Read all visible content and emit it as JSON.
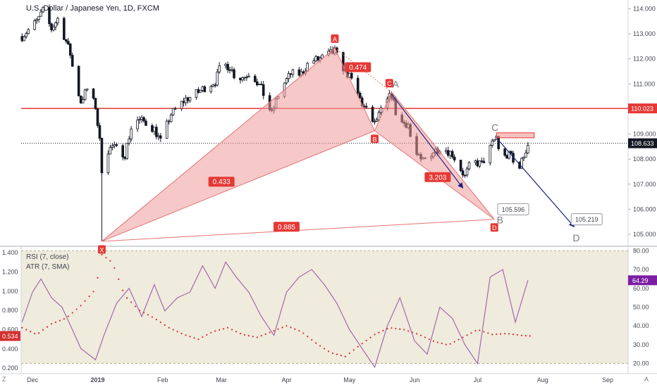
{
  "header": {
    "title": "U.S. Dollar / Japanese Yen, 1D, FXCM",
    "rsi_legend": "RSI (7, close)",
    "atr_legend": "ATR (7, SMA)"
  },
  "corner": {
    "left": "Z",
    "right": "A"
  },
  "chart_data": [
    {
      "type": "candlestick",
      "x_tick_labels": [
        "Dec",
        "2019",
        "Feb",
        "Mar",
        "Apr",
        "May",
        "Jun",
        "Jul",
        "Aug",
        "Sep"
      ],
      "y_tick_labels": [
        "105.000",
        "106.000",
        "107.000",
        "108.000",
        "109.000",
        "110.000",
        "111.000",
        "112.000",
        "113.000",
        "114.000"
      ],
      "ylim": [
        104.55,
        114.35
      ],
      "price_path": [
        [
          "Nov 26",
          112.9
        ],
        [
          "Dec 3",
          113.5
        ],
        [
          "Dec 6",
          113.9
        ],
        [
          "Dec 10",
          113.2
        ],
        [
          "Dec 13",
          113.6
        ],
        [
          "Dec 17",
          112.7
        ],
        [
          "Dec 19",
          112.2
        ],
        [
          "Dec 21",
          111.2
        ],
        [
          "Dec 24",
          110.3
        ],
        [
          "Dec 27",
          110.8
        ],
        [
          "Dec 31",
          110.1
        ],
        [
          "Jan 2",
          108.7
        ],
        [
          "Jan 3",
          107.6
        ],
        [
          "Jan 4",
          108.2
        ],
        [
          "Jan 8",
          108.5
        ],
        [
          "Jan 14",
          108.2
        ],
        [
          "Jan 18",
          109.6
        ],
        [
          "Jan 23",
          109.5
        ],
        [
          "Jan 28",
          109.2
        ],
        [
          "Jan 31",
          108.7
        ],
        [
          "Feb 5",
          109.8
        ],
        [
          "Feb 12",
          110.4
        ],
        [
          "Feb 15",
          110.5
        ],
        [
          "Feb 20",
          110.8
        ],
        [
          "Feb 26",
          111.1
        ],
        [
          "Mar 1",
          111.8
        ],
        [
          "Mar 5",
          111.7
        ],
        [
          "Mar 8",
          111.2
        ],
        [
          "Mar 12",
          111.3
        ],
        [
          "Mar 15",
          111.5
        ],
        [
          "Mar 20",
          110.8
        ],
        [
          "Mar 25",
          109.8
        ],
        [
          "Mar 29",
          110.8
        ],
        [
          "Apr 3",
          111.4
        ],
        [
          "Apr 8",
          111.4
        ],
        [
          "Apr 12",
          111.9
        ],
        [
          "Apr 17",
          112.0
        ],
        [
          "Apr 24",
          112.3
        ],
        [
          "Apr 26",
          111.9
        ],
        [
          "Apr 30",
          111.4
        ],
        [
          "May 3",
          111.0
        ],
        [
          "May 7",
          110.2
        ],
        [
          "May 13",
          109.4
        ],
        [
          "May 16",
          109.9
        ],
        [
          "May 21",
          110.6
        ],
        [
          "May 24",
          109.5
        ],
        [
          "May 29",
          109.4
        ],
        [
          "May 31",
          108.4
        ],
        [
          "Jun 4",
          107.9
        ],
        [
          "Jun 10",
          108.3
        ],
        [
          "Jun 14",
          108.5
        ],
        [
          "Jun 19",
          108.2
        ],
        [
          "Jun 25",
          107.3
        ],
        [
          "Jun 28",
          107.9
        ],
        [
          "Jul 3",
          107.8
        ],
        [
          "Jul 8",
          108.6
        ],
        [
          "Jul 10",
          108.9
        ],
        [
          "Jul 12",
          108.0
        ],
        [
          "Jul 17",
          108.2
        ],
        [
          "Jul 19",
          107.5
        ],
        [
          "Jul 22",
          107.9
        ],
        [
          "Jul 25",
          108.6
        ]
      ],
      "levels": [
        {
          "name": "resistance",
          "value": 110.023,
          "color": "#e53935"
        },
        {
          "name": "last-price",
          "value": 108.633,
          "color": "#131722"
        }
      ],
      "pattern": {
        "points": [
          {
            "label": "X",
            "date": "Jan 3",
            "price": 104.72
          },
          {
            "label": "A",
            "date": "Apr 24",
            "price": 112.43
          },
          {
            "label": "B",
            "date": "May 13",
            "price": 109.13
          },
          {
            "label": "C",
            "date": "May 21",
            "price": 110.68
          },
          {
            "label": "D",
            "date": "Jul 9",
            "price": 105.596
          }
        ],
        "ratios": [
          {
            "text": "0.433",
            "date": "Mar 1",
            "price": 107.1
          },
          {
            "text": "0.474",
            "date": "May 5",
            "price": 111.67
          },
          {
            "text": "3.203",
            "date": "Jun 12",
            "price": 107.28
          },
          {
            "text": "0.885",
            "date": "Apr 1",
            "price": 105.3
          }
        ]
      },
      "projection": {
        "points": [
          {
            "label": "A",
            "date": "May 21",
            "price": 110.68
          },
          {
            "label": "B",
            "date": "Jul 9",
            "price": 105.596
          },
          {
            "label": "C",
            "date": "Jul 10",
            "price": 108.9
          },
          {
            "label": "D",
            "date": "Aug 17",
            "price": 105.219
          }
        ],
        "callouts": [
          {
            "text": "105.596",
            "date": "Jul 18",
            "price": 106.0
          },
          {
            "text": "105.219",
            "date": "Aug 22",
            "price": 105.6
          }
        ],
        "arrows": [
          {
            "from": [
              "May 21",
              110.6
            ],
            "to": [
              "Jun 24",
              106.85
            ]
          },
          {
            "from": [
              "Jul 10",
              108.85
            ],
            "to": [
              "Aug 16",
              105.3
            ]
          }
        ],
        "zone": {
          "from": "Jul 10",
          "to": "Jul 28",
          "low": 108.85,
          "high": 109.05
        }
      },
      "price_badges": [
        {
          "text": "110.023",
          "value": 110.023,
          "bg": "#e53935"
        },
        {
          "text": "108.633",
          "value": 108.633,
          "bg": "#131722"
        }
      ]
    },
    {
      "type": "line",
      "name": "RSI (7, close)",
      "y_tick_labels": [
        "20.00",
        "30.00",
        "40.00",
        "50.00",
        "60.00",
        "70.00",
        "80.00"
      ],
      "ylim": [
        15,
        82
      ],
      "band": [
        20,
        80
      ],
      "last_value": "64.29",
      "x": [
        "Nov 26",
        "Dec 1",
        "Dec 5",
        "Dec 10",
        "Dec 15",
        "Dec 20",
        "Dec 24",
        "Dec 31",
        "Jan 4",
        "Jan 10",
        "Jan 16",
        "Jan 22",
        "Jan 28",
        "Feb 2",
        "Feb 8",
        "Feb 14",
        "Feb 20",
        "Feb 26",
        "Mar 3",
        "Mar 8",
        "Mar 14",
        "Mar 20",
        "Mar 26",
        "Apr 1",
        "Apr 7",
        "Apr 13",
        "Apr 19",
        "Apr 25",
        "May 1",
        "May 7",
        "May 13",
        "May 19",
        "May 25",
        "Jun 1",
        "Jun 7",
        "Jun 13",
        "Jun 19",
        "Jun 25",
        "Jul 1",
        "Jul 7",
        "Jul 13",
        "Jul 19",
        "Jul 25"
      ],
      "values": [
        42,
        58,
        65,
        55,
        50,
        38,
        28,
        22,
        35,
        52,
        60,
        45,
        62,
        48,
        55,
        58,
        72,
        60,
        74,
        66,
        58,
        45,
        35,
        58,
        66,
        70,
        62,
        52,
        38,
        28,
        18,
        40,
        55,
        32,
        25,
        50,
        44,
        30,
        20,
        66,
        70,
        42,
        64.29
      ]
    },
    {
      "type": "scatter",
      "name": "ATR (7, SMA)",
      "y_tick_labels": [
        "0.200",
        "0.400",
        "0.600",
        "0.800",
        "1.000",
        "1.200",
        "1.400"
      ],
      "ylim": [
        0.15,
        1.46
      ],
      "last_value": "0.534",
      "x": [
        "Nov 26",
        "Dec 3",
        "Dec 10",
        "Dec 17",
        "Dec 24",
        "Dec 31",
        "Jan 3",
        "Jan 8",
        "Jan 14",
        "Jan 21",
        "Jan 28",
        "Feb 4",
        "Feb 11",
        "Feb 18",
        "Feb 25",
        "Mar 4",
        "Mar 11",
        "Mar 18",
        "Mar 25",
        "Apr 1",
        "Apr 8",
        "Apr 15",
        "Apr 22",
        "Apr 29",
        "May 6",
        "May 13",
        "May 20",
        "May 27",
        "Jun 3",
        "Jun 10",
        "Jun 17",
        "Jun 24",
        "Jul 1",
        "Jul 8",
        "Jul 15",
        "Jul 22",
        "Jul 26"
      ],
      "values": [
        0.62,
        0.55,
        0.66,
        0.72,
        0.85,
        1.02,
        1.38,
        1.3,
        0.95,
        0.8,
        0.72,
        0.62,
        0.55,
        0.5,
        0.58,
        0.62,
        0.55,
        0.52,
        0.58,
        0.64,
        0.58,
        0.46,
        0.36,
        0.32,
        0.44,
        0.55,
        0.62,
        0.6,
        0.55,
        0.48,
        0.44,
        0.52,
        0.6,
        0.55,
        0.56,
        0.54,
        0.534
      ]
    }
  ]
}
